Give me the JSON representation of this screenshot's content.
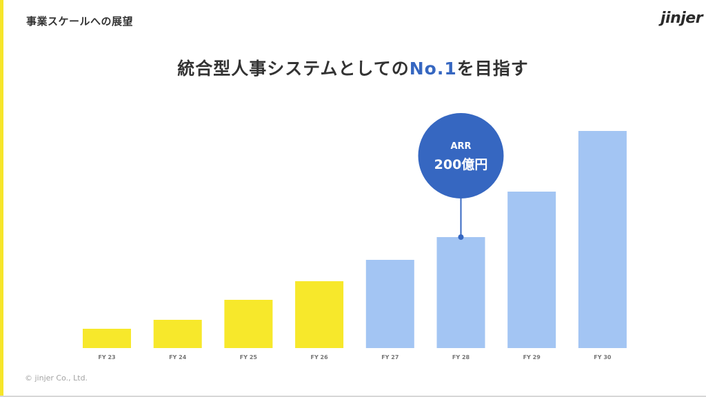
{
  "slide": {
    "section_title": "事業スケールへの展望",
    "logo_text": "jinjer",
    "headline_prefix": "統合型人事システムとしての",
    "headline_accent": "No.1",
    "headline_suffix": "を目指す",
    "copyright": "© jinjer Co., Ltd."
  },
  "colors": {
    "accent_yellow": "#f6e52a",
    "bar_yellow": "#f7e82b",
    "bar_blue": "#a3c5f3",
    "bubble_blue": "#3667c1",
    "headline_blue": "#3667c1"
  },
  "chart_data": {
    "type": "bar",
    "categories": [
      "FY 23",
      "FY 24",
      "FY 25",
      "FY 26",
      "FY 27",
      "FY 28",
      "FY 29",
      "FY 30"
    ],
    "values": [
      28,
      41,
      70,
      97,
      128,
      161,
      227,
      315
    ],
    "bar_colors": [
      "yellow",
      "yellow",
      "yellow",
      "yellow",
      "blue",
      "blue",
      "blue",
      "blue"
    ],
    "ylim": [
      0,
      330
    ],
    "grid": false,
    "legend": "none",
    "annotation": {
      "category": "FY 28",
      "line1": "ARR",
      "line2": "200億円"
    }
  }
}
